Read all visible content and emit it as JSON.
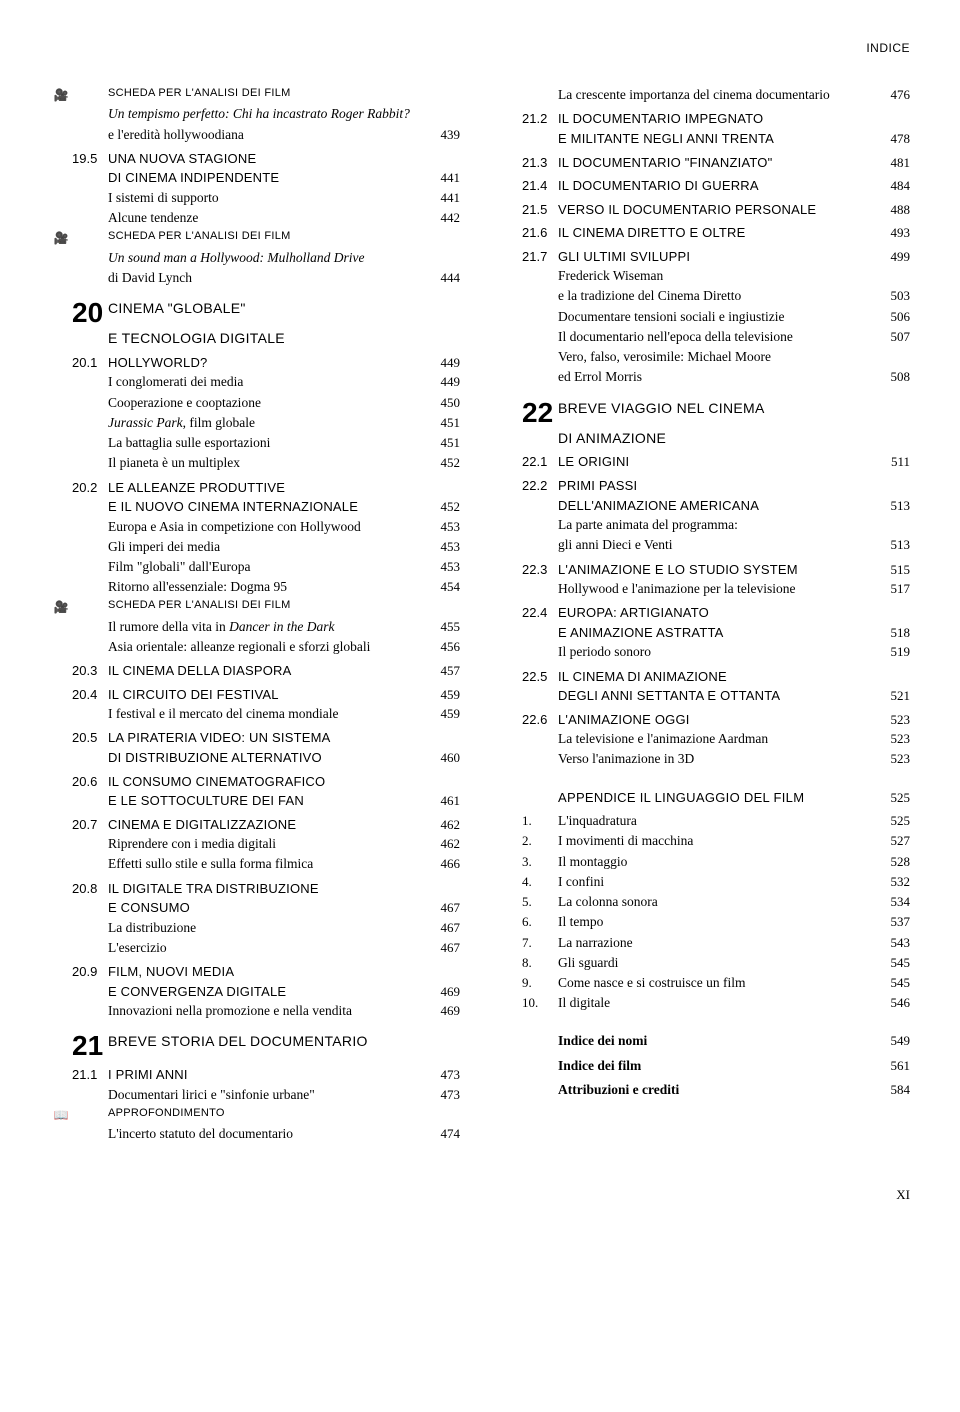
{
  "header": "INDICE",
  "footer_page": "XI",
  "icons": {
    "camera": "🎥",
    "book": "📖"
  },
  "labels": {
    "scheda": "SCHEDA PER L'ANALISI DEI FILM",
    "approf": "APPROFONDIMENTO",
    "appendice": "APPENDICE",
    "ling": "IL LINGUAGGIO DEL FILM"
  },
  "left": [
    {
      "t": "icon",
      "icon": "camera"
    },
    {
      "t": "scheda"
    },
    {
      "t": "sub",
      "text": "Un tempismo perfetto: Chi ha incastrato Roger Rabbit?",
      "it": true
    },
    {
      "t": "sub",
      "text": "e l'eredità hollywoodiana",
      "page": "439"
    },
    {
      "t": "gap-s"
    },
    {
      "t": "sec",
      "num": "19.5",
      "text": "UNA NUOVA STAGIONE"
    },
    {
      "t": "sec",
      "num": "",
      "text": "DI CINEMA INDIPENDENTE",
      "page": "441"
    },
    {
      "t": "sub",
      "text": "I sistemi di supporto",
      "page": "441"
    },
    {
      "t": "sub",
      "text": "Alcune tendenze",
      "page": "442"
    },
    {
      "t": "icon",
      "icon": "camera"
    },
    {
      "t": "scheda"
    },
    {
      "t": "sub",
      "text": "Un sound man a Hollywood: Mulholland Drive",
      "it": true
    },
    {
      "t": "sub",
      "text": "di David Lynch",
      "page": "444"
    },
    {
      "t": "gap-m"
    },
    {
      "t": "chap",
      "num": "20",
      "text": "CINEMA \"GLOBALE\""
    },
    {
      "t": "chap2",
      "text": "E TECNOLOGIA DIGITALE"
    },
    {
      "t": "gap-s"
    },
    {
      "t": "sec",
      "num": "20.1",
      "text": "HOLLYWORLD?",
      "page": "449"
    },
    {
      "t": "sub",
      "text": "I conglomerati dei media",
      "page": "449"
    },
    {
      "t": "sub",
      "text": "Cooperazione e cooptazione",
      "page": "450"
    },
    {
      "t": "sub",
      "text": "Jurassic Park, film globale",
      "page": "451",
      "it": true,
      "itpart": "Jurassic Park"
    },
    {
      "t": "sub",
      "text": "La battaglia sulle esportazioni",
      "page": "451"
    },
    {
      "t": "sub",
      "text": "Il pianeta è un multiplex",
      "page": "452"
    },
    {
      "t": "gap-s"
    },
    {
      "t": "sec",
      "num": "20.2",
      "text": "LE ALLEANZE PRODUTTIVE"
    },
    {
      "t": "sec",
      "num": "",
      "text": "E IL NUOVO CINEMA INTERNAZIONALE",
      "page": "452"
    },
    {
      "t": "sub",
      "text": "Europa e Asia in competizione con Hollywood",
      "page": "453"
    },
    {
      "t": "sub",
      "text": "Gli imperi dei media",
      "page": "453"
    },
    {
      "t": "sub",
      "text": "Film \"globali\" dall'Europa",
      "page": "453"
    },
    {
      "t": "sub",
      "text": "Ritorno all'essenziale: Dogma 95",
      "page": "454"
    },
    {
      "t": "icon",
      "icon": "camera"
    },
    {
      "t": "scheda"
    },
    {
      "t": "sub",
      "text": "Il rumore della vita in Dancer in the Dark",
      "page": "455",
      "itpart": "Dancer in the Dark"
    },
    {
      "t": "sub",
      "text": "Asia orientale: alleanze regionali e sforzi globali",
      "page": "456"
    },
    {
      "t": "gap-s"
    },
    {
      "t": "sec",
      "num": "20.3",
      "text": "IL CINEMA DELLA DIASPORA",
      "page": "457"
    },
    {
      "t": "gap-s"
    },
    {
      "t": "sec",
      "num": "20.4",
      "text": "IL CIRCUITO DEI FESTIVAL",
      "page": "459"
    },
    {
      "t": "sub",
      "text": "I festival e il mercato del cinema mondiale",
      "page": "459"
    },
    {
      "t": "gap-s"
    },
    {
      "t": "sec",
      "num": "20.5",
      "text": "LA PIRATERIA VIDEO: UN SISTEMA"
    },
    {
      "t": "sec",
      "num": "",
      "text": "DI DISTRIBUZIONE ALTERNATIVO",
      "page": "460"
    },
    {
      "t": "gap-s"
    },
    {
      "t": "sec",
      "num": "20.6",
      "text": "IL CONSUMO CINEMATOGRAFICO"
    },
    {
      "t": "sec",
      "num": "",
      "text": "E LE SOTTOCULTURE DEI FAN",
      "page": "461"
    },
    {
      "t": "gap-s"
    },
    {
      "t": "sec",
      "num": "20.7",
      "text": "CINEMA E DIGITALIZZAZIONE",
      "page": "462"
    },
    {
      "t": "sub",
      "text": "Riprendere con i media digitali",
      "page": "462"
    },
    {
      "t": "sub",
      "text": "Effetti sullo stile e sulla forma filmica",
      "page": "466"
    },
    {
      "t": "gap-s"
    },
    {
      "t": "sec",
      "num": "20.8",
      "text": "IL DIGITALE TRA DISTRIBUZIONE"
    },
    {
      "t": "sec",
      "num": "",
      "text": "E CONSUMO",
      "page": "467"
    },
    {
      "t": "sub",
      "text": "La distribuzione",
      "page": "467"
    },
    {
      "t": "sub",
      "text": "L'esercizio",
      "page": "467"
    },
    {
      "t": "gap-s"
    },
    {
      "t": "sec",
      "num": "20.9",
      "text": "FILM, NUOVI MEDIA"
    },
    {
      "t": "sec",
      "num": "",
      "text": "E CONVERGENZA DIGITALE",
      "page": "469"
    },
    {
      "t": "sub",
      "text": "Innovazioni nella promozione e nella vendita",
      "page": "469"
    },
    {
      "t": "gap-m"
    },
    {
      "t": "chap",
      "num": "21",
      "text": "BREVE STORIA DEL DOCUMENTARIO"
    },
    {
      "t": "gap-s"
    },
    {
      "t": "sec",
      "num": "21.1",
      "text": "I PRIMI ANNI",
      "page": "473"
    },
    {
      "t": "sub",
      "text": "Documentari lirici e \"sinfonie urbane\"",
      "page": "473"
    },
    {
      "t": "icon",
      "icon": "book"
    },
    {
      "t": "approf"
    },
    {
      "t": "sub",
      "text": "L'incerto statuto del documentario",
      "page": "474"
    }
  ],
  "right": [
    {
      "t": "sub",
      "text": "La crescente importanza del cinema documentario",
      "page": "476"
    },
    {
      "t": "gap-s"
    },
    {
      "t": "sec",
      "num": "21.2",
      "text": "IL DOCUMENTARIO IMPEGNATO"
    },
    {
      "t": "sec",
      "num": "",
      "text": "E MILITANTE NEGLI ANNI TRENTA",
      "page": "478"
    },
    {
      "t": "gap-s"
    },
    {
      "t": "sec",
      "num": "21.3",
      "text": "IL DOCUMENTARIO \"FINANZIATO\"",
      "page": "481"
    },
    {
      "t": "gap-s"
    },
    {
      "t": "sec",
      "num": "21.4",
      "text": "IL DOCUMENTARIO DI GUERRA",
      "page": "484"
    },
    {
      "t": "gap-s"
    },
    {
      "t": "sec",
      "num": "21.5",
      "text": "VERSO IL DOCUMENTARIO PERSONALE",
      "page": "488"
    },
    {
      "t": "gap-s"
    },
    {
      "t": "sec",
      "num": "21.6",
      "text": "IL CINEMA DIRETTO E OLTRE",
      "page": "493"
    },
    {
      "t": "gap-s"
    },
    {
      "t": "sec",
      "num": "21.7",
      "text": "GLI ULTIMI SVILUPPI",
      "page": "499"
    },
    {
      "t": "sub",
      "text": "Frederick Wiseman"
    },
    {
      "t": "sub",
      "text": "e la tradizione del Cinema Diretto",
      "page": "503"
    },
    {
      "t": "sub",
      "text": "Documentare tensioni sociali e ingiustizie",
      "page": "506"
    },
    {
      "t": "sub",
      "text": "Il documentario nell'epoca della televisione",
      "page": "507"
    },
    {
      "t": "sub",
      "text": "Vero, falso, verosimile: Michael Moore"
    },
    {
      "t": "sub",
      "text": "ed Errol Morris",
      "page": "508"
    },
    {
      "t": "gap-m"
    },
    {
      "t": "chap",
      "num": "22",
      "text": "BREVE VIAGGIO NEL CINEMA"
    },
    {
      "t": "chap2",
      "text": "DI ANIMAZIONE"
    },
    {
      "t": "gap-s"
    },
    {
      "t": "sec",
      "num": "22.1",
      "text": "LE ORIGINI",
      "page": "511"
    },
    {
      "t": "gap-s"
    },
    {
      "t": "sec",
      "num": "22.2",
      "text": "PRIMI PASSI"
    },
    {
      "t": "sec",
      "num": "",
      "text": "DELL'ANIMAZIONE AMERICANA",
      "page": "513"
    },
    {
      "t": "sub",
      "text": "La parte animata del programma:"
    },
    {
      "t": "sub",
      "text": "gli anni Dieci e Venti",
      "page": "513"
    },
    {
      "t": "gap-s"
    },
    {
      "t": "sec",
      "num": "22.3",
      "text": "L'ANIMAZIONE E LO STUDIO SYSTEM",
      "page": "515"
    },
    {
      "t": "sub",
      "text": "Hollywood e l'animazione per la televisione",
      "page": "517"
    },
    {
      "t": "gap-s"
    },
    {
      "t": "sec",
      "num": "22.4",
      "text": "EUROPA: ARTIGIANATO"
    },
    {
      "t": "sec",
      "num": "",
      "text": "E ANIMAZIONE ASTRATTA",
      "page": "518"
    },
    {
      "t": "sub",
      "text": "Il periodo sonoro",
      "page": "519"
    },
    {
      "t": "gap-s"
    },
    {
      "t": "sec",
      "num": "22.5",
      "text": "IL CINEMA DI ANIMAZIONE"
    },
    {
      "t": "sec",
      "num": "",
      "text": "DEGLI ANNI SETTANTA E OTTANTA",
      "page": "521"
    },
    {
      "t": "gap-s"
    },
    {
      "t": "sec",
      "num": "22.6",
      "text": "L'ANIMAZIONE OGGI",
      "page": "523"
    },
    {
      "t": "sub",
      "text": "La televisione e l'animazione Aardman",
      "page": "523"
    },
    {
      "t": "sub",
      "text": "Verso l'animazione in 3D",
      "page": "523"
    },
    {
      "t": "gap-l"
    },
    {
      "t": "appendix",
      "page": "525"
    },
    {
      "t": "gap-s"
    },
    {
      "t": "appx",
      "num": "1.",
      "text": "L'inquadratura",
      "page": "525"
    },
    {
      "t": "appx",
      "num": "2.",
      "text": "I movimenti di macchina",
      "page": "527"
    },
    {
      "t": "appx",
      "num": "3.",
      "text": "Il montaggio",
      "page": "528"
    },
    {
      "t": "appx",
      "num": "4.",
      "text": "I confini",
      "page": "532"
    },
    {
      "t": "appx",
      "num": "5.",
      "text": "La colonna sonora",
      "page": "534"
    },
    {
      "t": "appx",
      "num": "6.",
      "text": "Il tempo",
      "page": "537"
    },
    {
      "t": "appx",
      "num": "7.",
      "text": "La narrazione",
      "page": "543"
    },
    {
      "t": "appx",
      "num": "8.",
      "text": "Gli sguardi",
      "page": "545"
    },
    {
      "t": "appx",
      "num": "9.",
      "text": "Come nasce e si costruisce un film",
      "page": "545"
    },
    {
      "t": "appx",
      "num": "10.",
      "text": "Il digitale",
      "page": "546"
    },
    {
      "t": "gap-l"
    },
    {
      "t": "bold",
      "text": "Indice dei nomi",
      "page": "549"
    },
    {
      "t": "gap-s"
    },
    {
      "t": "bold",
      "text": "Indice dei film",
      "page": "561"
    },
    {
      "t": "gap-s"
    },
    {
      "t": "bold",
      "text": "Attribuzioni e crediti",
      "page": "584"
    }
  ]
}
